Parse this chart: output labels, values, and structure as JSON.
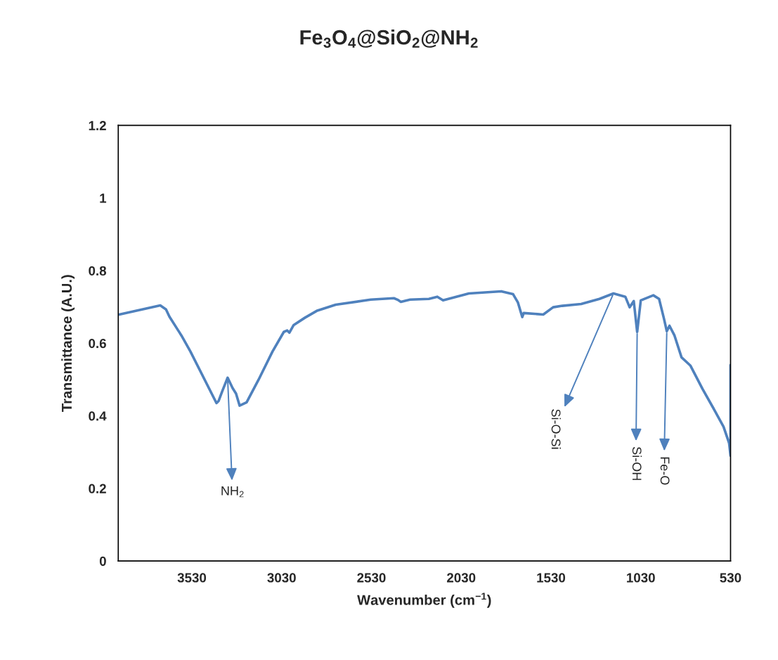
{
  "chart_data": {
    "type": "line",
    "title": "Fe$_{3}$O$_{4}$@SiO$_{2}$@NH$_{2}$",
    "xlabel": "Wavenumber (cm$^{−1}$)",
    "ylabel": "Transmittance (A.U.)",
    "xlim": [
      3940,
      530
    ],
    "xticks": [
      3530,
      3030,
      2530,
      2030,
      1530,
      1030,
      530
    ],
    "ylim": [
      0,
      1.2
    ],
    "yticks": [
      0,
      0.2,
      0.4,
      0.6,
      0.8,
      1,
      1.2
    ],
    "grid": false,
    "legend": false,
    "series": [
      {
        "color": "#4f81bd",
        "x": [
          3935,
          3706,
          3674,
          3655,
          3588,
          3538,
          3393,
          3381,
          3362,
          3331,
          3303,
          3284,
          3264,
          3225,
          3159,
          3081,
          3018,
          2999,
          2987,
          2963,
          2901,
          2835,
          2729,
          2534,
          2405,
          2385,
          2366,
          2315,
          2210,
          2163,
          2131,
          1987,
          1807,
          1741,
          1714,
          1690,
          1682,
          1573,
          1518,
          1467,
          1362,
          1260,
          1182,
          1116,
          1092,
          1069,
          1050,
          1030,
          960,
          928,
          901,
          885,
          870,
          842,
          803,
          753,
          686,
          620,
          569,
          538,
          530,
          530
        ],
        "values": [
          0.679,
          0.704,
          0.693,
          0.673,
          0.621,
          0.577,
          0.435,
          0.441,
          0.466,
          0.505,
          0.476,
          0.461,
          0.428,
          0.437,
          0.499,
          0.577,
          0.631,
          0.635,
          0.629,
          0.65,
          0.67,
          0.689,
          0.706,
          0.72,
          0.724,
          0.72,
          0.714,
          0.72,
          0.722,
          0.728,
          0.718,
          0.737,
          0.743,
          0.735,
          0.712,
          0.672,
          0.683,
          0.679,
          0.699,
          0.703,
          0.708,
          0.722,
          0.737,
          0.728,
          0.699,
          0.716,
          0.631,
          0.718,
          0.732,
          0.722,
          0.668,
          0.633,
          0.648,
          0.621,
          0.561,
          0.538,
          0.474,
          0.416,
          0.37,
          0.325,
          0.29,
          0.54
        ]
      }
    ],
    "annotations": [
      {
        "text": "NH$_{2}$",
        "x": 3331,
        "y": 0.505
      },
      {
        "text": "Si-O-Si",
        "x": 1182,
        "y": 0.737
      },
      {
        "text": "Si-OH",
        "x": 1050,
        "y": 0.631
      },
      {
        "text": "Fe-O",
        "x": 885,
        "y": 0.633
      }
    ]
  }
}
